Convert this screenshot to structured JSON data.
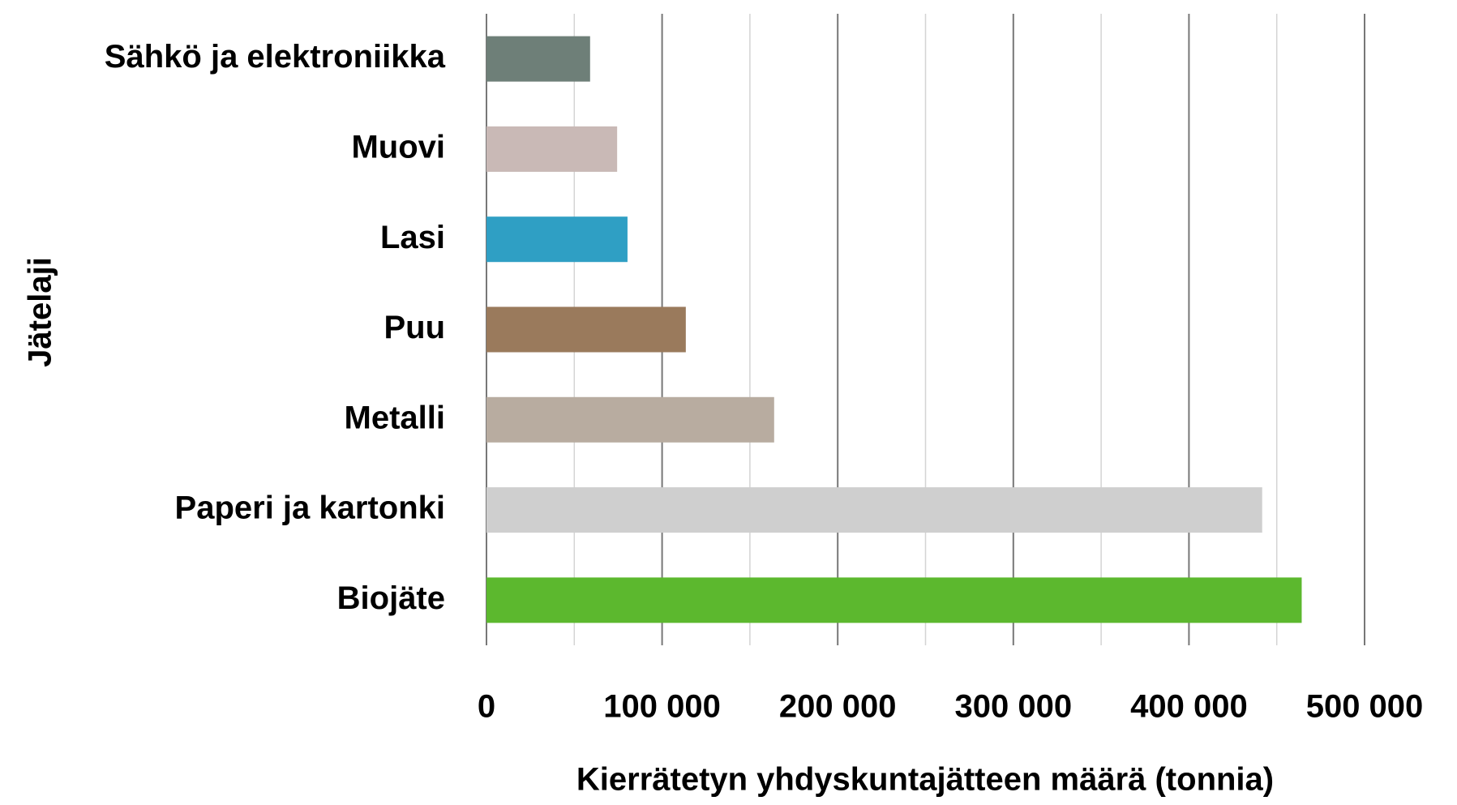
{
  "chart_data": {
    "type": "hbar",
    "categories": [
      "Sähkö ja elektroniikka",
      "Muovi",
      "Lasi",
      "Puu",
      "Metalli",
      "Paperi ja kartonki",
      "Biojäte"
    ],
    "values": [
      59000,
      74400,
      80300,
      113500,
      163800,
      441700,
      464200
    ],
    "colors": [
      "#6e7f78",
      "#c9b9b6",
      "#2f9fc4",
      "#9a7a5c",
      "#b8aca0",
      "#cfcfcf",
      "#5cb82e"
    ],
    "xlim": [
      0,
      500000
    ],
    "xticks": [
      0,
      {
        "value": 100000,
        "label": "100 000"
      },
      {
        "value": 200000,
        "label": "200 000"
      },
      {
        "value": 300000,
        "label": "300 000"
      },
      {
        "value": 400000,
        "label": "400 000"
      },
      {
        "value": 500000,
        "label": "500 000"
      }
    ],
    "xminor": [
      50000,
      150000,
      250000,
      350000,
      450000
    ],
    "xlabel": "Kierrätetyn yhdyskuntajätteen määrä (tonnia)",
    "ylabel": "Jätelaji",
    "grid": true
  }
}
